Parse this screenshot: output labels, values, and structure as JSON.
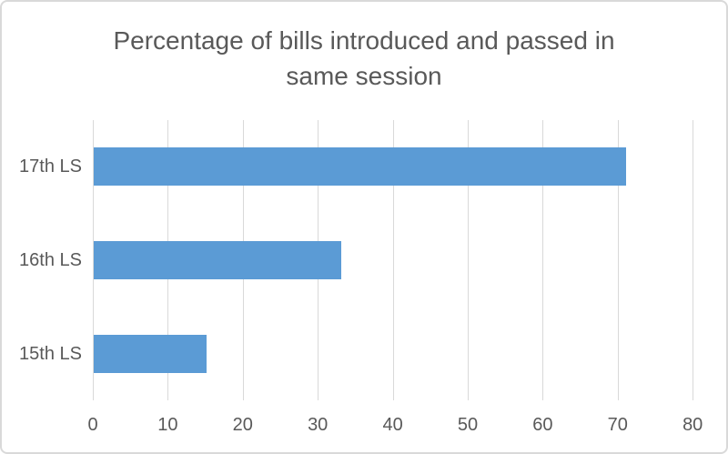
{
  "chart": {
    "title_lines": [
      "Percentage of bills introduced and passed in",
      "same session"
    ],
    "colors": {
      "bar": "#5b9bd5",
      "gridline": "#d9d9d9",
      "text": "#595959",
      "border": "#d9d9d9",
      "background": "#ffffff"
    }
  },
  "chart_data": {
    "type": "bar",
    "orientation": "horizontal",
    "title": "Percentage of bills introduced and passed in same session",
    "categories": [
      "17th LS",
      "16th LS",
      "15th LS"
    ],
    "values": [
      71,
      33,
      15
    ],
    "xlabel": "",
    "ylabel": "",
    "xlim": [
      0,
      80
    ],
    "x_ticks": [
      0,
      10,
      20,
      30,
      40,
      50,
      60,
      70,
      80
    ],
    "grid": true,
    "legend": false
  }
}
